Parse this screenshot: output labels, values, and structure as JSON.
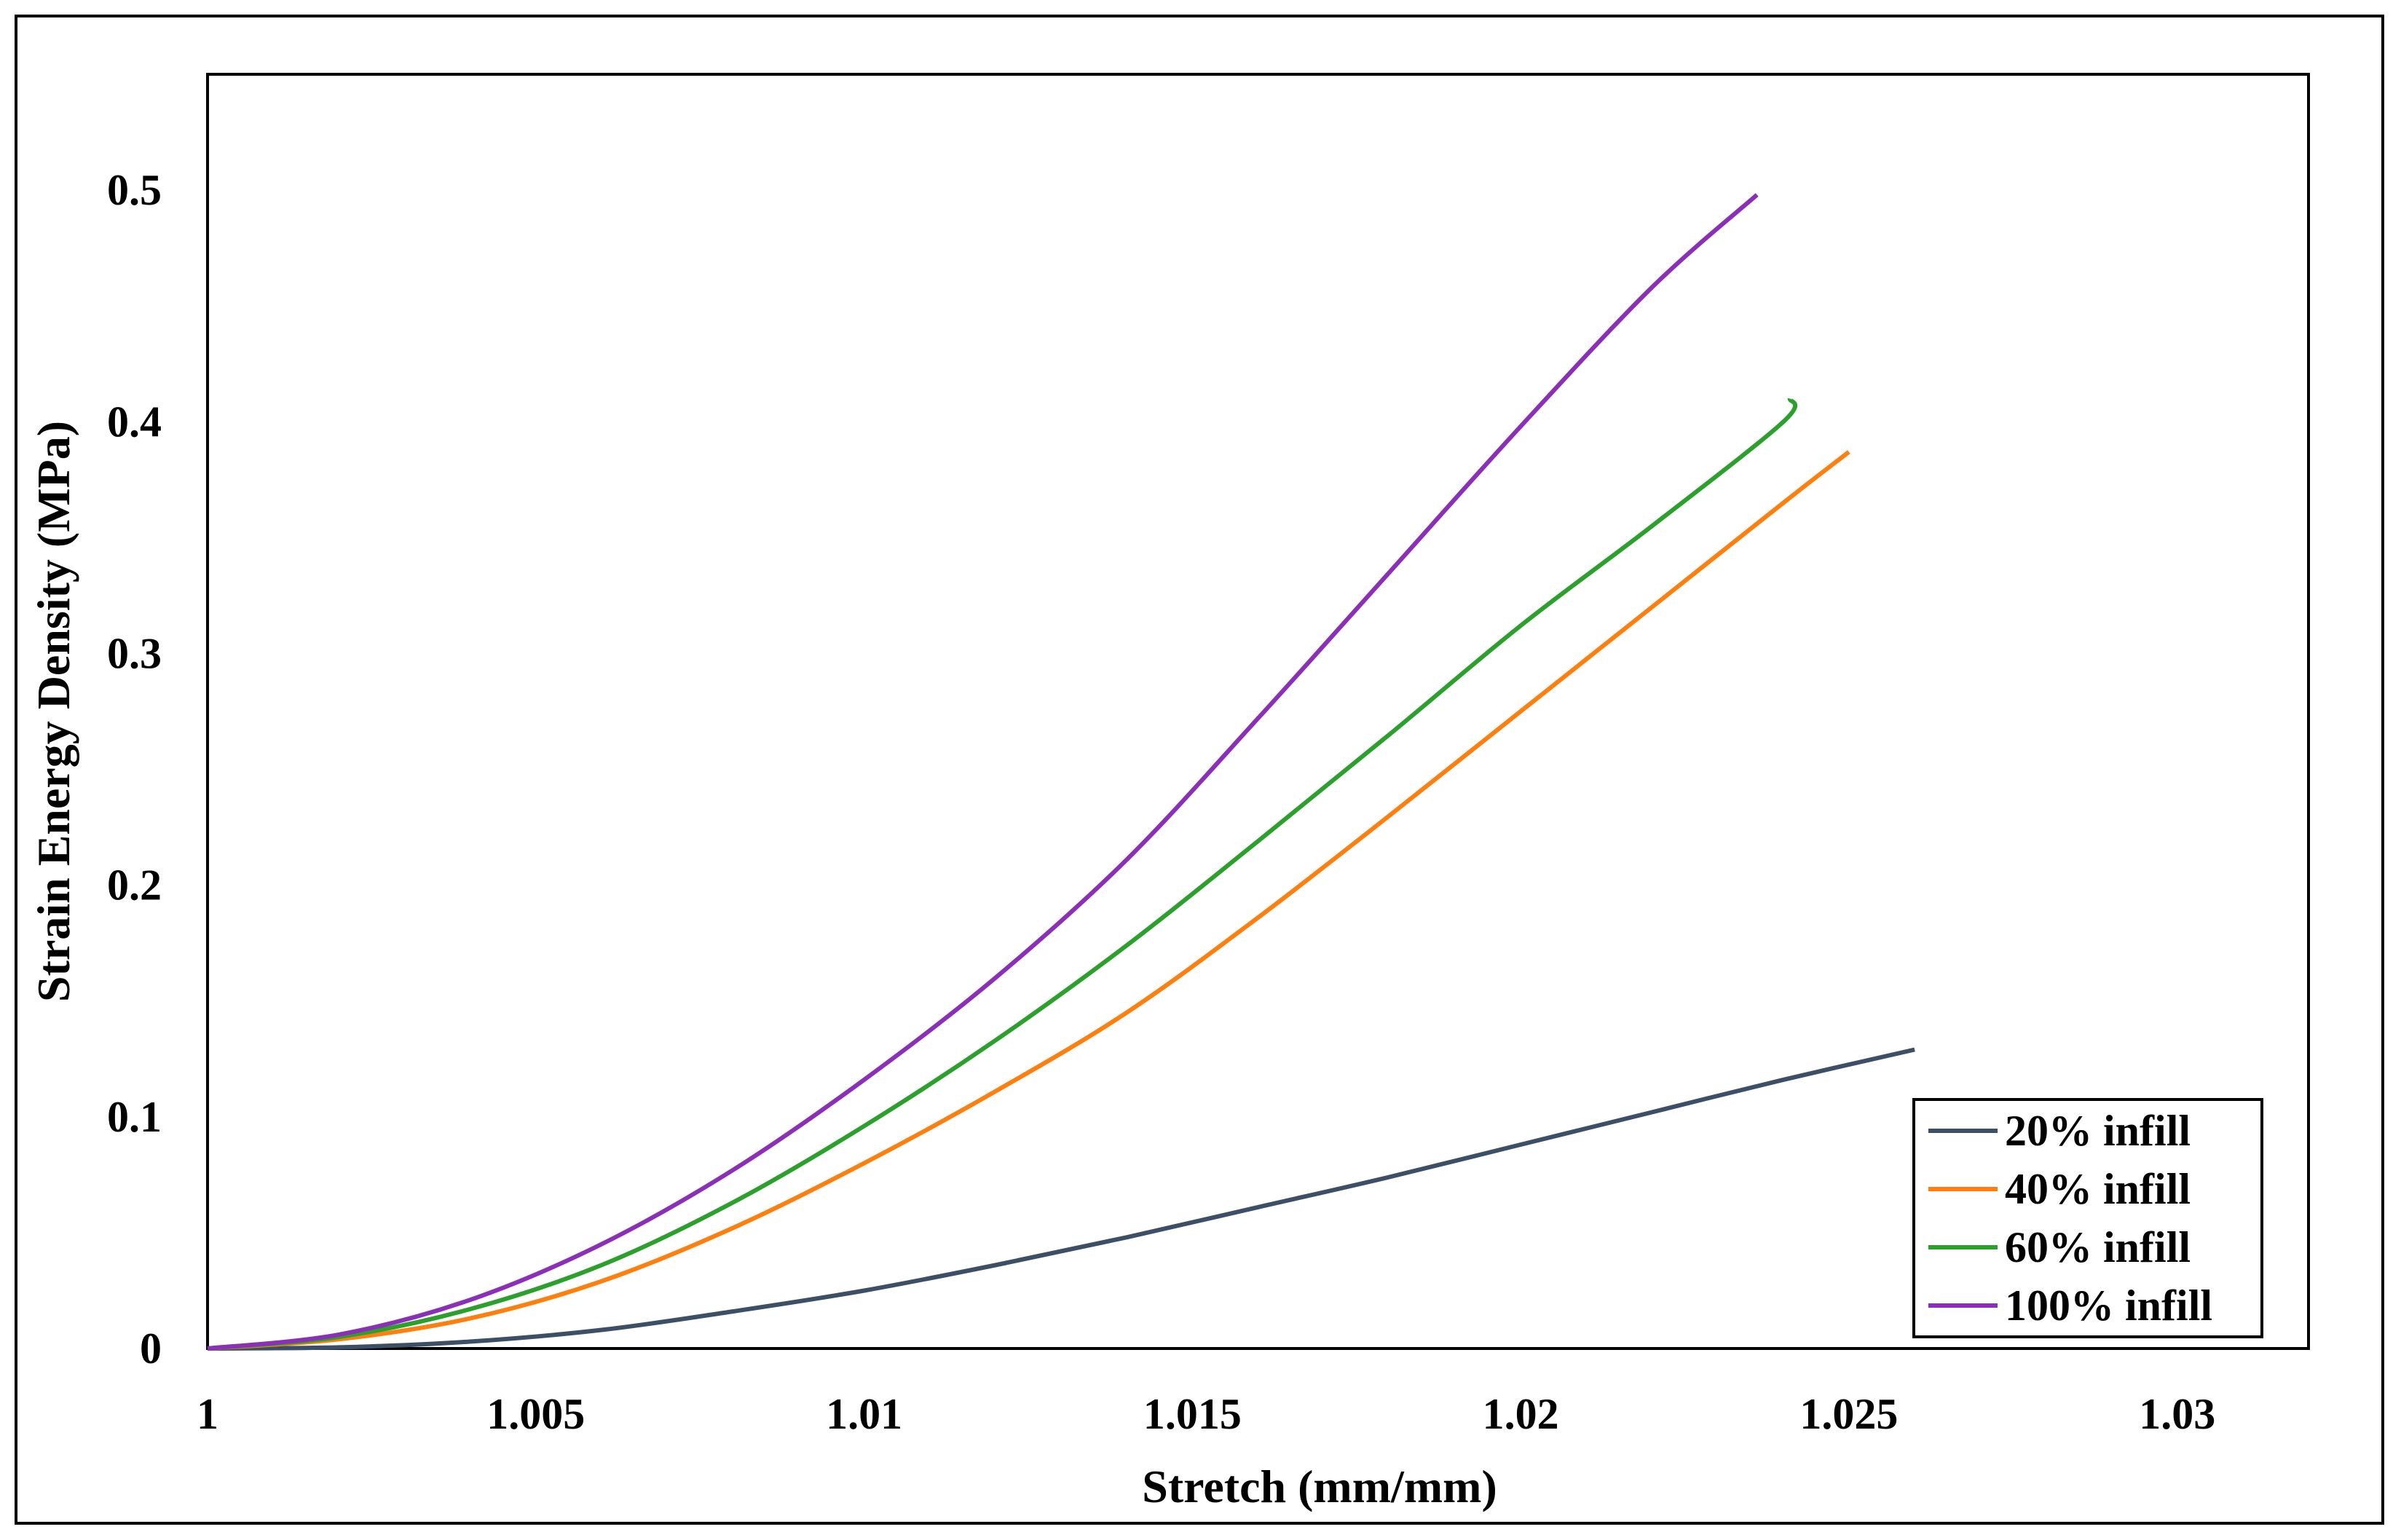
{
  "chart_data": {
    "type": "line",
    "title": "",
    "xlabel": "Stretch (mm/mm)",
    "ylabel": "Strain Energy Density (MPa)",
    "xlim": [
      1,
      1.032
    ],
    "ylim": [
      0,
      0.55
    ],
    "xticks": [
      1,
      1.005,
      1.01,
      1.015,
      1.02,
      1.025,
      1.03
    ],
    "xtick_labels": [
      "1",
      "1.005",
      "1.01",
      "1.015",
      "1.02",
      "1.025",
      "1.03"
    ],
    "yticks": [
      0,
      0.1,
      0.2,
      0.3,
      0.4,
      0.5
    ],
    "ytick_labels": [
      "0",
      "0.1",
      "0.2",
      "0.3",
      "0.4",
      "0.5"
    ],
    "grid": false,
    "legend_position": "bottom-right",
    "series": [
      {
        "name": "20% infill",
        "color": "#3d4f66",
        "x": [
          1.0,
          1.002,
          1.004,
          1.006,
          1.008,
          1.01,
          1.012,
          1.014,
          1.016,
          1.018,
          1.02,
          1.022,
          1.024,
          1.026
        ],
        "y": [
          0.0,
          0.0005,
          0.003,
          0.008,
          0.016,
          0.025,
          0.036,
          0.048,
          0.061,
          0.074,
          0.088,
          0.102,
          0.116,
          0.129
        ]
      },
      {
        "name": "40% infill",
        "color": "#ff7f0e",
        "x": [
          1.0,
          1.002,
          1.004,
          1.006,
          1.008,
          1.01,
          1.012,
          1.014,
          1.016,
          1.018,
          1.02,
          1.022,
          1.024,
          1.025
        ],
        "y": [
          0.0,
          0.004,
          0.013,
          0.029,
          0.052,
          0.08,
          0.111,
          0.145,
          0.186,
          0.23,
          0.275,
          0.32,
          0.365,
          0.387
        ]
      },
      {
        "name": "60% infill",
        "color": "#2ca02c",
        "x": [
          1.0,
          1.002,
          1.004,
          1.006,
          1.008,
          1.01,
          1.012,
          1.014,
          1.016,
          1.018,
          1.02,
          1.022,
          1.024,
          1.0241
        ],
        "y": [
          0.0,
          0.005,
          0.017,
          0.036,
          0.063,
          0.096,
          0.133,
          0.174,
          0.219,
          0.265,
          0.312,
          0.355,
          0.4,
          0.41
        ]
      },
      {
        "name": "100% infill",
        "color": "#8b2fb8",
        "x": [
          1.0,
          1.002,
          1.004,
          1.006,
          1.008,
          1.01,
          1.012,
          1.014,
          1.016,
          1.018,
          1.02,
          1.022,
          1.0236
        ],
        "y": [
          0.0,
          0.006,
          0.021,
          0.045,
          0.077,
          0.116,
          0.16,
          0.211,
          0.272,
          0.335,
          0.398,
          0.458,
          0.498
        ]
      }
    ]
  }
}
